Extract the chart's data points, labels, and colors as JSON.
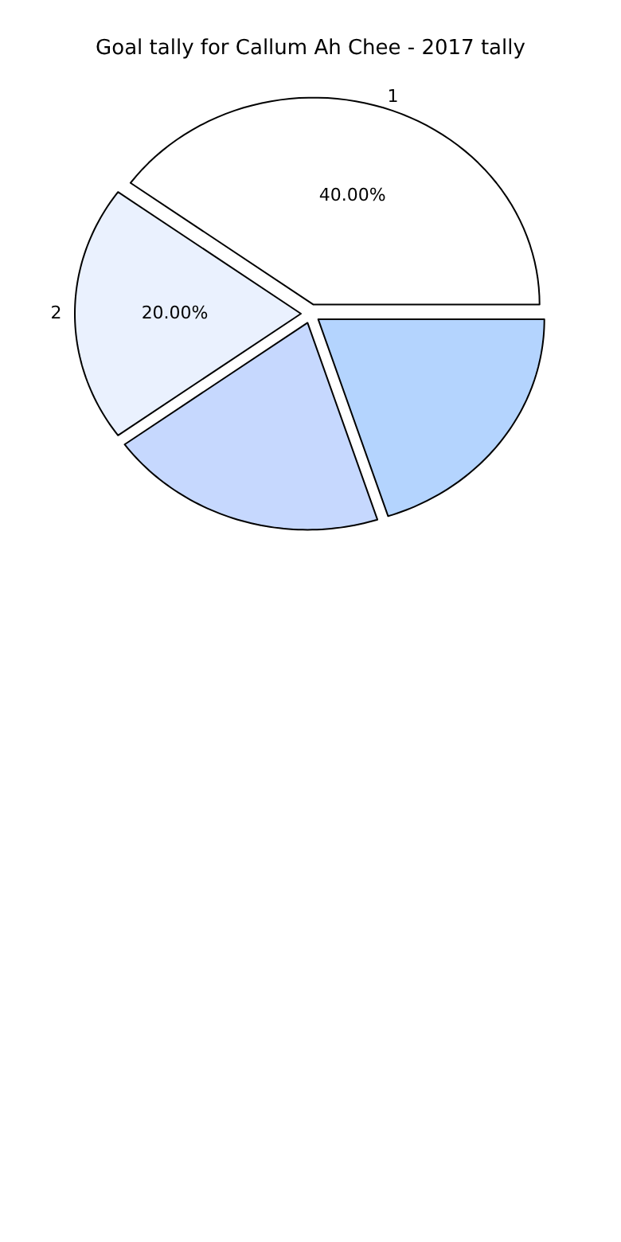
{
  "chart_data": {
    "type": "pie",
    "title": "Goal tally for Callum Ah Chee - 2017 tally",
    "categories": [
      "1",
      "2",
      null,
      null
    ],
    "values": [
      40,
      20,
      20,
      20
    ],
    "colors": [
      "#ffffff",
      "#eaf1fe",
      "#c6d8fe",
      "#b4d4fe"
    ],
    "value_labels": [
      "40.00%",
      "20.00%",
      null,
      null
    ],
    "legend": false
  }
}
